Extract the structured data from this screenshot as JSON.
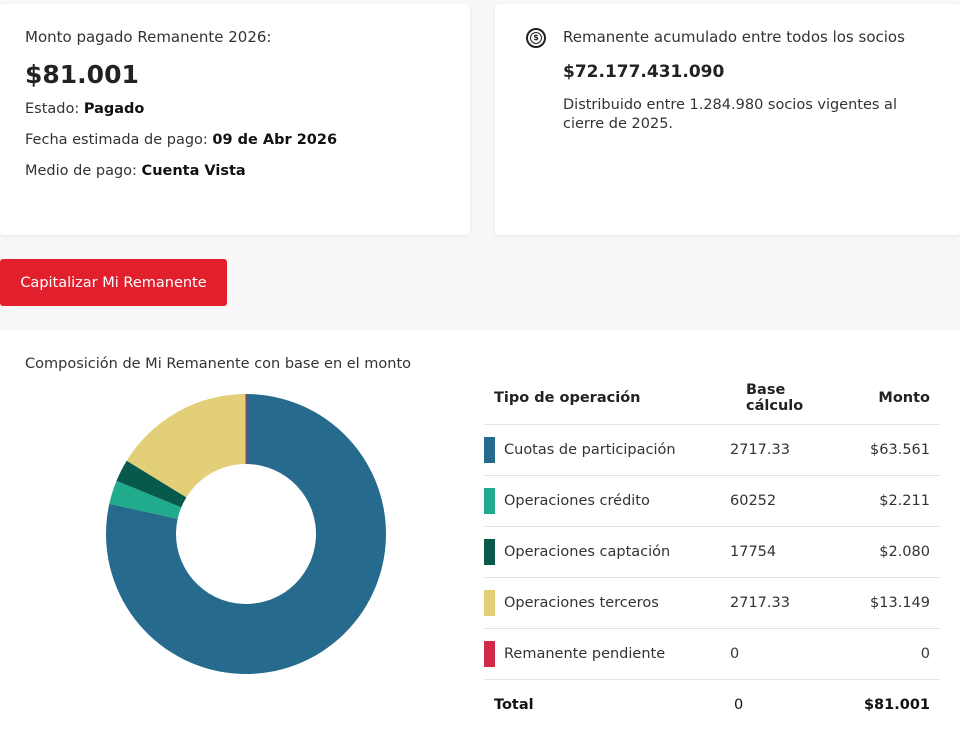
{
  "personal": {
    "label": "Monto pagado Remanente 2026:",
    "amount": "$81.001",
    "estado_label": "Estado: ",
    "estado": "Pagado",
    "fecha_label": "Fecha estimada de pago: ",
    "fecha": "09 de Abr 2026",
    "medio_label": "Medio de pago: ",
    "medio": "Cuenta Vista"
  },
  "global": {
    "icon": "coin-dollar-icon",
    "title": "Remanente acumulado entre todos los socios",
    "amount": "$72.177.431.090",
    "description": "Distribuido entre 1.284.980 socios vigentes al cierre de 2025."
  },
  "button": {
    "label": "Capitalizar Mi Remanente"
  },
  "composition": {
    "title": "Composición de Mi Remanente con base en el monto",
    "headers": [
      "Tipo de operación",
      "Base cálculo",
      "Monto"
    ],
    "rows": [
      {
        "tipo": "Cuotas de participación",
        "base": "2717.33",
        "monto": "$63.561",
        "color": "#266b8e"
      },
      {
        "tipo": "Operaciones crédito",
        "base": "60252",
        "monto": "$2.211",
        "color": "#1fab8c"
      },
      {
        "tipo": "Operaciones captación",
        "base": "17754",
        "monto": "$2.080",
        "color": "#07594c"
      },
      {
        "tipo": "Operaciones terceros",
        "base": "2717.33",
        "monto": "$13.149",
        "color": "#e3cf77"
      },
      {
        "tipo": "Remanente pendiente",
        "base": "0",
        "monto": "0",
        "color": "#d32a4c"
      }
    ],
    "total": {
      "label": "Total",
      "base": "0",
      "monto": "$81.001"
    }
  },
  "chart_data": {
    "type": "pie",
    "variant": "donut",
    "title": "Composición de Mi Remanente con base en el monto",
    "categories": [
      "Cuotas de participación",
      "Operaciones crédito",
      "Operaciones captación",
      "Operaciones terceros",
      "Remanente pendiente"
    ],
    "values": [
      63561,
      2211,
      2080,
      13149,
      0
    ],
    "colors": [
      "#266b8e",
      "#1fab8c",
      "#07594c",
      "#e3cf77",
      "#d32a4c"
    ]
  }
}
